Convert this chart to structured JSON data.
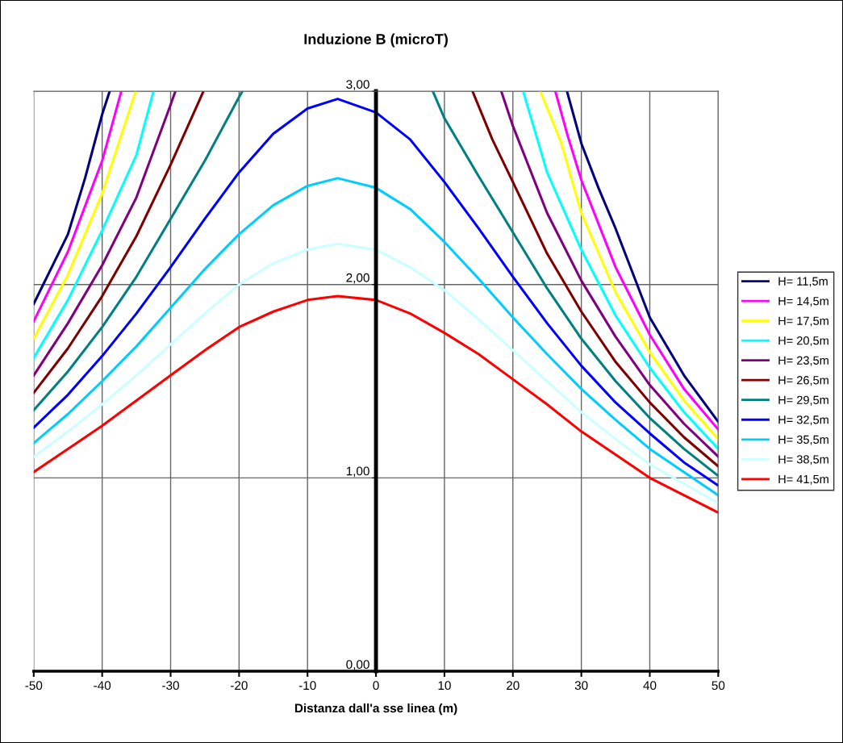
{
  "chart_data": {
    "type": "line",
    "title": "Induzione B (microT)",
    "xlabel": "Distanza dall'a sse linea (m)",
    "xlim": [
      -50,
      50
    ],
    "xticks": [
      -50,
      -40,
      -30,
      -20,
      -10,
      0,
      10,
      20,
      30,
      40,
      50
    ],
    "ylim": [
      0,
      3
    ],
    "yticks": [
      {
        "value": 0,
        "label": "0,00"
      },
      {
        "value": 1,
        "label": "1,00"
      },
      {
        "value": 2,
        "label": "2,00"
      },
      {
        "value": 3,
        "label": "3,00"
      }
    ],
    "grid": true,
    "legend": "right",
    "marker": "none",
    "line_style": "solid",
    "series": [
      {
        "name": "H= 11,5m",
        "color": "#000080",
        "x": [
          -50,
          -45,
          -42.5,
          -40,
          -38.9,
          0,
          27.9,
          30,
          32.5,
          35,
          40,
          45,
          50
        ],
        "values": [
          1.9,
          2.26,
          2.55,
          2.88,
          3.0,
          null,
          3.0,
          2.73,
          2.5,
          2.29,
          1.83,
          1.53,
          1.29
        ]
      },
      {
        "name": "H= 14,5m",
        "color": "#ff00ff",
        "x": [
          -50,
          -45,
          -40,
          -37.2,
          0,
          26.2,
          28,
          30,
          35,
          40,
          45,
          50
        ],
        "values": [
          1.81,
          2.17,
          2.64,
          3.0,
          null,
          3.0,
          2.77,
          2.54,
          2.09,
          1.74,
          1.46,
          1.25
        ]
      },
      {
        "name": "H= 17,5m",
        "color": "#ffff00",
        "x": [
          -50,
          -45,
          -40,
          -37.5,
          -35.1,
          0,
          24.0,
          27,
          30,
          35,
          40,
          45,
          50
        ],
        "values": [
          1.72,
          2.05,
          2.47,
          2.74,
          3.0,
          null,
          3.0,
          2.74,
          2.37,
          1.96,
          1.65,
          1.4,
          1.2
        ]
      },
      {
        "name": "H= 20,5m",
        "color": "#00ffff",
        "x": [
          -50,
          -45,
          -40,
          -35,
          -32.5,
          0,
          21.5,
          25,
          30,
          35,
          40,
          45,
          50
        ],
        "values": [
          1.62,
          1.92,
          2.28,
          2.67,
          3.0,
          null,
          3.0,
          2.58,
          2.18,
          1.84,
          1.57,
          1.34,
          1.15
        ]
      },
      {
        "name": "H= 23,5m",
        "color": "#800080",
        "x": [
          -50,
          -45,
          -40,
          -35,
          -30,
          -29.3,
          0,
          18.3,
          20,
          25,
          30,
          35,
          40,
          45,
          50
        ],
        "values": [
          1.53,
          1.8,
          2.1,
          2.45,
          2.93,
          3.0,
          null,
          3.0,
          2.82,
          2.37,
          2.02,
          1.73,
          1.48,
          1.28,
          1.11
        ]
      },
      {
        "name": "H= 26,5m",
        "color": "#800000",
        "x": [
          -50,
          -45,
          -40,
          -35,
          -30,
          -25.2,
          0,
          14.1,
          17,
          20,
          25,
          30,
          35,
          40,
          45,
          50
        ],
        "values": [
          1.44,
          1.67,
          1.94,
          2.25,
          2.62,
          3.0,
          null,
          3.0,
          2.75,
          2.53,
          2.16,
          1.86,
          1.6,
          1.39,
          1.21,
          1.06
        ]
      },
      {
        "name": "H= 29,5m",
        "color": "#008080",
        "x": [
          -50,
          -45,
          -40,
          -35,
          -30,
          -25,
          -20,
          -19.5,
          0,
          8.3,
          10,
          15,
          20,
          25,
          30,
          35,
          40,
          45,
          50
        ],
        "values": [
          1.35,
          1.55,
          1.78,
          2.04,
          2.34,
          2.64,
          2.97,
          3.0,
          null,
          3.0,
          2.86,
          2.56,
          2.27,
          1.98,
          1.72,
          1.5,
          1.31,
          1.15,
          1.01
        ]
      },
      {
        "name": "H= 32,5m",
        "color": "#0000ff",
        "x": [
          -50,
          -45,
          -40,
          -35,
          -30,
          -25,
          -20,
          -15,
          -10,
          -5.6,
          0,
          5,
          10,
          15,
          20,
          25,
          30,
          35,
          40,
          45,
          50
        ],
        "values": [
          1.26,
          1.43,
          1.63,
          1.85,
          2.09,
          2.34,
          2.58,
          2.78,
          2.91,
          2.96,
          2.89,
          2.75,
          2.53,
          2.29,
          2.04,
          1.8,
          1.58,
          1.39,
          1.23,
          1.08,
          0.96
        ]
      },
      {
        "name": "H= 35,5m",
        "color": "#00ccff",
        "x": [
          -50,
          -45,
          -40,
          -35,
          -30,
          -25,
          -20,
          -15,
          -10,
          -5.6,
          0,
          5,
          10,
          15,
          20,
          25,
          30,
          35,
          40,
          45,
          50
        ],
        "values": [
          1.18,
          1.33,
          1.5,
          1.68,
          1.88,
          2.08,
          2.26,
          2.41,
          2.51,
          2.55,
          2.5,
          2.39,
          2.22,
          2.03,
          1.83,
          1.64,
          1.46,
          1.3,
          1.15,
          1.03,
          0.91
        ]
      },
      {
        "name": "H= 38,5m",
        "color": "#ccffff",
        "x": [
          -50,
          -45,
          -40,
          -35,
          -30,
          -25,
          -20,
          -15,
          -10,
          -5.6,
          0,
          5,
          10,
          15,
          20,
          25,
          30,
          35,
          40,
          45,
          50
        ],
        "values": [
          1.11,
          1.24,
          1.38,
          1.53,
          1.69,
          1.85,
          2.0,
          2.11,
          2.18,
          2.21,
          2.18,
          2.09,
          1.97,
          1.82,
          1.66,
          1.5,
          1.34,
          1.2,
          1.07,
          0.97,
          0.87
        ]
      },
      {
        "name": "H= 41,5m",
        "color": "#ff0000",
        "x": [
          -50,
          -45,
          -40,
          -35,
          -30,
          -25,
          -20,
          -15,
          -10,
          -5.6,
          0,
          5,
          10,
          15,
          20,
          25,
          30,
          35,
          40,
          45,
          50
        ],
        "values": [
          1.03,
          1.15,
          1.27,
          1.4,
          1.53,
          1.66,
          1.78,
          1.86,
          1.92,
          1.94,
          1.92,
          1.85,
          1.75,
          1.64,
          1.51,
          1.38,
          1.24,
          1.12,
          1.0,
          0.91,
          0.82
        ]
      }
    ]
  }
}
